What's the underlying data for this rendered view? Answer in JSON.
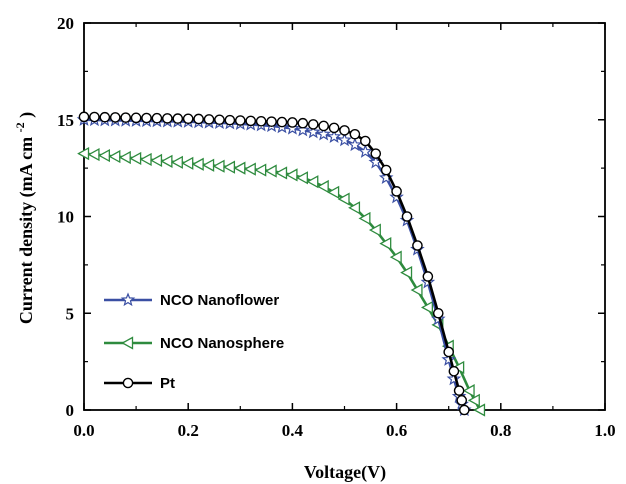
{
  "chart_data": {
    "type": "line",
    "title": "",
    "xlabel": "Voltage(V)",
    "ylabel": "Current density (mA cm",
    "ylabel_superscript": "-2",
    "ylabel_close": ")",
    "xlim": [
      0.0,
      1.0
    ],
    "ylim": [
      0,
      20
    ],
    "x_ticks": [
      "0.0",
      "0.2",
      "0.4",
      "0.6",
      "0.8",
      "1.0"
    ],
    "y_ticks": [
      "0",
      "5",
      "10",
      "15",
      "20"
    ],
    "grid": false,
    "legend_position": "lower-left",
    "series": [
      {
        "name": "NCO Nanoflower",
        "color": "#3a4fa3",
        "marker": "star",
        "x": [
          0.0,
          0.02,
          0.04,
          0.06,
          0.08,
          0.1,
          0.12,
          0.14,
          0.16,
          0.18,
          0.2,
          0.22,
          0.24,
          0.26,
          0.28,
          0.3,
          0.32,
          0.34,
          0.36,
          0.38,
          0.4,
          0.42,
          0.44,
          0.46,
          0.48,
          0.5,
          0.52,
          0.54,
          0.56,
          0.58,
          0.6,
          0.62,
          0.64,
          0.66,
          0.68,
          0.7,
          0.71,
          0.72,
          0.725,
          0.73
        ],
        "y": [
          15.0,
          14.99,
          14.98,
          14.97,
          14.96,
          14.95,
          14.94,
          14.93,
          14.92,
          14.91,
          14.9,
          14.88,
          14.86,
          14.84,
          14.82,
          14.79,
          14.76,
          14.72,
          14.68,
          14.62,
          14.55,
          14.46,
          14.36,
          14.25,
          14.12,
          13.95,
          13.7,
          13.35,
          12.8,
          12.0,
          11.0,
          9.8,
          8.3,
          6.6,
          4.7,
          2.6,
          1.6,
          0.7,
          0.3,
          0.0
        ]
      },
      {
        "name": "NCO Nanosphere",
        "color": "#2e8b3e",
        "marker": "triangle-left",
        "x": [
          0.0,
          0.02,
          0.04,
          0.06,
          0.08,
          0.1,
          0.12,
          0.14,
          0.16,
          0.18,
          0.2,
          0.22,
          0.24,
          0.26,
          0.28,
          0.3,
          0.32,
          0.34,
          0.36,
          0.38,
          0.4,
          0.42,
          0.44,
          0.46,
          0.48,
          0.5,
          0.52,
          0.54,
          0.56,
          0.58,
          0.6,
          0.62,
          0.64,
          0.66,
          0.68,
          0.7,
          0.72,
          0.74,
          0.75,
          0.76
        ],
        "y": [
          13.25,
          13.2,
          13.15,
          13.1,
          13.05,
          13.0,
          12.95,
          12.9,
          12.85,
          12.8,
          12.75,
          12.7,
          12.65,
          12.6,
          12.55,
          12.5,
          12.45,
          12.4,
          12.35,
          12.25,
          12.15,
          12.0,
          11.8,
          11.55,
          11.25,
          10.9,
          10.45,
          9.9,
          9.3,
          8.6,
          7.9,
          7.1,
          6.2,
          5.3,
          4.4,
          3.3,
          2.2,
          1.0,
          0.5,
          0.0
        ]
      },
      {
        "name": "Pt",
        "color": "#000000",
        "marker": "circle",
        "x": [
          0.0,
          0.02,
          0.04,
          0.06,
          0.08,
          0.1,
          0.12,
          0.14,
          0.16,
          0.18,
          0.2,
          0.22,
          0.24,
          0.26,
          0.28,
          0.3,
          0.32,
          0.34,
          0.36,
          0.38,
          0.4,
          0.42,
          0.44,
          0.46,
          0.48,
          0.5,
          0.52,
          0.54,
          0.56,
          0.58,
          0.6,
          0.62,
          0.64,
          0.66,
          0.68,
          0.7,
          0.71,
          0.72,
          0.725,
          0.73
        ],
        "y": [
          15.15,
          15.14,
          15.13,
          15.12,
          15.11,
          15.1,
          15.09,
          15.08,
          15.07,
          15.06,
          15.05,
          15.04,
          15.02,
          15.0,
          14.98,
          14.96,
          14.94,
          14.92,
          14.9,
          14.88,
          14.86,
          14.82,
          14.76,
          14.68,
          14.58,
          14.45,
          14.25,
          13.9,
          13.25,
          12.4,
          11.3,
          10.0,
          8.5,
          6.9,
          5.0,
          3.0,
          2.0,
          1.0,
          0.5,
          0.0
        ]
      }
    ]
  }
}
